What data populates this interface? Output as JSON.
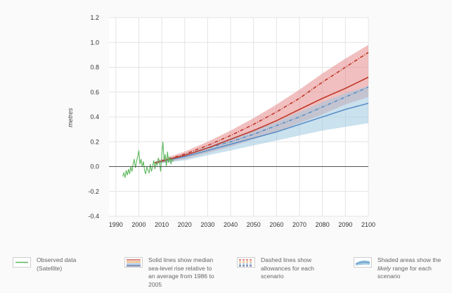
{
  "chart_data": {
    "type": "line",
    "ylabel": "metres",
    "xlim": [
      1987,
      2100
    ],
    "ylim": [
      -0.4,
      1.2
    ],
    "x_ticks": [
      "1990",
      "2000",
      "2010",
      "2020",
      "2030",
      "2040",
      "2050",
      "2060",
      "2070",
      "2080",
      "2090",
      "2100"
    ],
    "y_ticks": [
      "-0.4",
      "-0.2",
      "0.0",
      "0.2",
      "0.4",
      "0.6",
      "0.8",
      "1.0",
      "1.2"
    ],
    "grid": true,
    "legend_position": "bottom",
    "colors": {
      "observed": "#5cb85c",
      "high_median": "#c0392b",
      "high_band": "#e58a8a",
      "low_median": "#5b8fc7",
      "low_band": "#9ec9e0"
    },
    "observed": {
      "x": [
        1993.0,
        1993.5,
        1994.0,
        1994.5,
        1995.0,
        1995.5,
        1996.0,
        1996.5,
        1997.0,
        1997.5,
        1998.0,
        1998.5,
        1999.0,
        1999.5,
        2000.0,
        2000.5,
        2001.0,
        2001.5,
        2002.0,
        2002.5,
        2003.0,
        2003.5,
        2004.0,
        2004.5,
        2005.0,
        2005.5,
        2006.0,
        2006.5,
        2007.0,
        2007.5,
        2008.0,
        2008.5,
        2009.0,
        2009.5,
        2010.0,
        2010.5,
        2011.0,
        2011.5,
        2012.0,
        2012.5,
        2013.0,
        2013.5,
        2014.0,
        2014.5,
        2015.0
      ],
      "y": [
        -0.08,
        -0.05,
        -0.09,
        -0.03,
        -0.07,
        -0.02,
        -0.06,
        0.0,
        -0.04,
        0.02,
        0.06,
        -0.01,
        0.04,
        0.08,
        0.13,
        0.02,
        0.06,
        0.0,
        0.04,
        -0.03,
        -0.06,
        0.0,
        -0.03,
        -0.05,
        0.02,
        -0.04,
        0.0,
        0.05,
        -0.02,
        0.03,
        0.01,
        0.07,
        0.04,
        -0.04,
        0.09,
        0.2,
        0.05,
        0.1,
        0.0,
        0.12,
        0.03,
        0.08,
        0.02,
        0.06,
        0.04
      ]
    },
    "projection_x": [
      2007,
      2020,
      2030,
      2040,
      2050,
      2060,
      2070,
      2080,
      2090,
      2100
    ],
    "series": [
      {
        "style": "band",
        "color": "high_band",
        "lower": [
          0.02,
          0.06,
          0.11,
          0.16,
          0.22,
          0.28,
          0.35,
          0.42,
          0.5,
          0.56
        ],
        "upper": [
          0.04,
          0.12,
          0.2,
          0.29,
          0.39,
          0.5,
          0.62,
          0.75,
          0.87,
          0.98
        ]
      },
      {
        "style": "band",
        "color": "low_band",
        "lower": [
          0.02,
          0.05,
          0.09,
          0.13,
          0.17,
          0.21,
          0.25,
          0.29,
          0.32,
          0.35
        ],
        "upper": [
          0.04,
          0.1,
          0.16,
          0.23,
          0.29,
          0.36,
          0.44,
          0.52,
          0.59,
          0.65
        ]
      },
      {
        "style": "solid",
        "color": "low_median",
        "values": [
          0.03,
          0.08,
          0.13,
          0.18,
          0.23,
          0.28,
          0.34,
          0.4,
          0.46,
          0.51
        ]
      },
      {
        "style": "dashed",
        "color": "low_median",
        "values": [
          0.03,
          0.09,
          0.15,
          0.2,
          0.26,
          0.33,
          0.4,
          0.48,
          0.56,
          0.64
        ]
      },
      {
        "style": "solid",
        "color": "high_median",
        "values": [
          0.03,
          0.09,
          0.15,
          0.22,
          0.29,
          0.37,
          0.46,
          0.55,
          0.63,
          0.72
        ]
      },
      {
        "style": "dashed",
        "color": "high_median",
        "values": [
          0.03,
          0.1,
          0.17,
          0.25,
          0.34,
          0.44,
          0.55,
          0.68,
          0.8,
          0.92
        ]
      }
    ]
  },
  "legend": {
    "observed_1": "Observed data",
    "observed_2": "(Satellite)",
    "solid_1": "Solid lines show median",
    "solid_2": "sea-level rise relative to",
    "solid_3": "an average from 1986 to",
    "solid_4": "2005",
    "dashed_1": "Dashed lines show",
    "dashed_2": "allowances for each",
    "dashed_3": "scenario",
    "shaded_1": "Shaded areas show the",
    "shaded_2_em": "likely",
    "shaded_2_rest": " range for each",
    "shaded_3": "scenario"
  }
}
